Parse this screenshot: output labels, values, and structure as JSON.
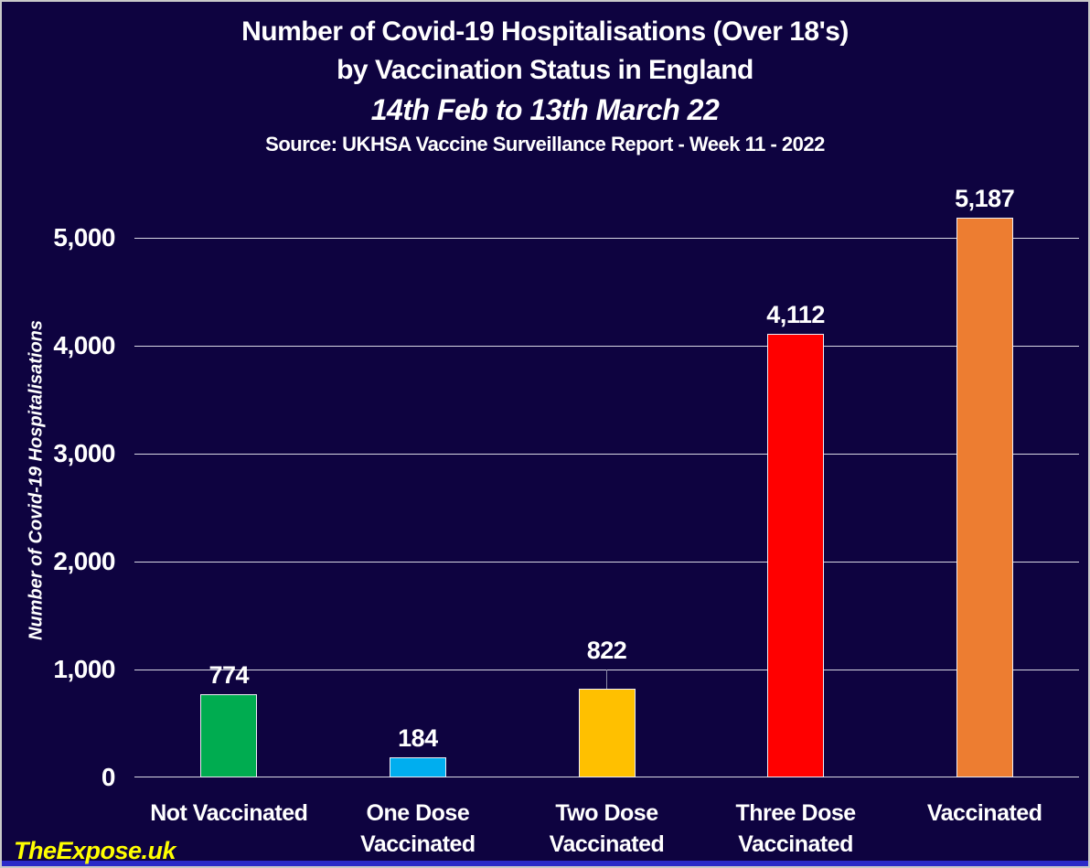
{
  "title": {
    "line1": "Number of Covid-19 Hospitalisations (Over 18's)",
    "line2": "by Vaccination Status in England",
    "line3": "14th Feb to 13th March 22",
    "line4": "Source: UKHSA Vaccine Surveillance Report - Week 11 - 2022"
  },
  "watermark": "TheExpose.uk",
  "chart_data": {
    "type": "bar",
    "title": "Number of Covid-19 Hospitalisations (Over 18's) by Vaccination Status in England",
    "subtitle": "14th Feb to 13th March 22",
    "source": "Source: UKHSA Vaccine Surveillance Report - Week 11 - 2022",
    "xlabel": "",
    "ylabel": "Number of Covid-19 Hospitalisations",
    "ylim": [
      0,
      5000
    ],
    "ytick_step": 1000,
    "yticks": [
      "5,000",
      "4,000",
      "3,000",
      "2,000",
      "1,000",
      "0"
    ],
    "grid": "horizontal",
    "legend": "none",
    "categories": [
      "Not Vaccinated",
      "One Dose Vaccinated",
      "Two Dose Vaccinated",
      "Three Dose Vaccinated",
      "Vaccinated"
    ],
    "category_lines": [
      [
        "Not Vaccinated"
      ],
      [
        "One Dose",
        "Vaccinated"
      ],
      [
        "Two Dose",
        "Vaccinated"
      ],
      [
        "Three Dose",
        "Vaccinated"
      ],
      [
        "Vaccinated"
      ]
    ],
    "values": [
      774,
      184,
      822,
      4112,
      5187
    ],
    "value_labels": [
      "774",
      "184",
      "822",
      "4,112",
      "5,187"
    ],
    "bar_colors": [
      "#00AC50",
      "#00AEEF",
      "#FFC000",
      "#FF0000",
      "#ED7D31"
    ],
    "label_leader": [
      false,
      false,
      true,
      false,
      false
    ]
  },
  "colors": {
    "background": "#0E0340",
    "text": "#FFFFFF",
    "gridline": "#D8D8E4",
    "bar_border": "#EDEDF5",
    "leader_line": "#8C8CA8",
    "watermark": "#FFFF00",
    "bottom_strip": "#2B2BC8",
    "frame_border": "#C9C9C9"
  }
}
